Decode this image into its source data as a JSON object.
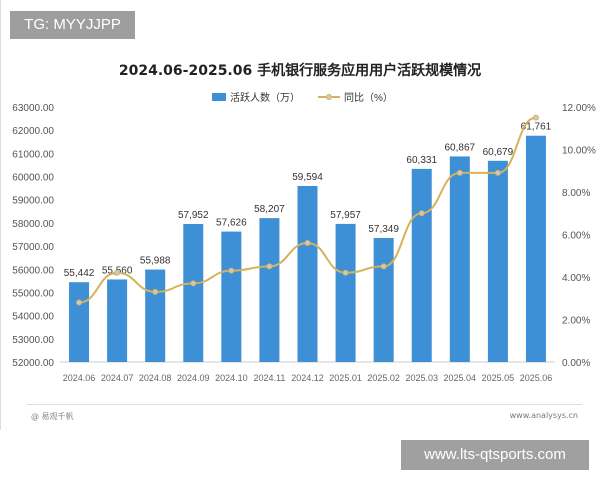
{
  "watermark_top": "TG: MYYJJPP",
  "watermark_bottom": "www.lts-qtsports.com",
  "footer": {
    "source": "@ 易观千帆",
    "site": "www.analysys.cn"
  },
  "colors": {
    "bar": "#3d8fd6",
    "line": "#d6b25a",
    "marker": "#c9c9c9"
  },
  "chart_data": {
    "type": "bar+line",
    "title": "2024.06-2025.06 手机银行服务应用用户活跃规模情况",
    "categories": [
      "2024.06",
      "2024.07",
      "2024.08",
      "2024.09",
      "2024.10",
      "2024.11",
      "2024.12",
      "2025.01",
      "2025.02",
      "2025.03",
      "2025.04",
      "2025.05",
      "2025.06"
    ],
    "series": [
      {
        "name": "活跃人数（万）",
        "type": "bar",
        "axis": "left",
        "values": [
          55442,
          55560,
          55988,
          57952,
          57626,
          58207,
          59594,
          57957,
          57349,
          60331,
          60867,
          60679,
          61761
        ],
        "labels": [
          "55,442",
          "55,560",
          "55,988",
          "57,952",
          "57,626",
          "58,207",
          "59,594",
          "57,957",
          "57,349",
          "60,331",
          "60,867",
          "60,679",
          "61,761"
        ]
      },
      {
        "name": "同比（%）",
        "type": "line",
        "axis": "right",
        "values": [
          2.8,
          4.2,
          3.3,
          3.7,
          4.3,
          4.5,
          5.6,
          4.2,
          4.5,
          7.0,
          8.9,
          8.9,
          11.5
        ]
      }
    ],
    "y_left": {
      "range": [
        52000,
        63000
      ],
      "ticks": [
        "52000.00",
        "53000.00",
        "54000.00",
        "55000.00",
        "56000.00",
        "57000.00",
        "58000.00",
        "59000.00",
        "60000.00",
        "61000.00",
        "62000.00",
        "63000.00"
      ]
    },
    "y_right": {
      "range": [
        0,
        12
      ],
      "ticks": [
        "0.00%",
        "2.00%",
        "4.00%",
        "6.00%",
        "8.00%",
        "10.00%",
        "12.00%"
      ]
    },
    "grid": false,
    "legend": "top-center"
  }
}
